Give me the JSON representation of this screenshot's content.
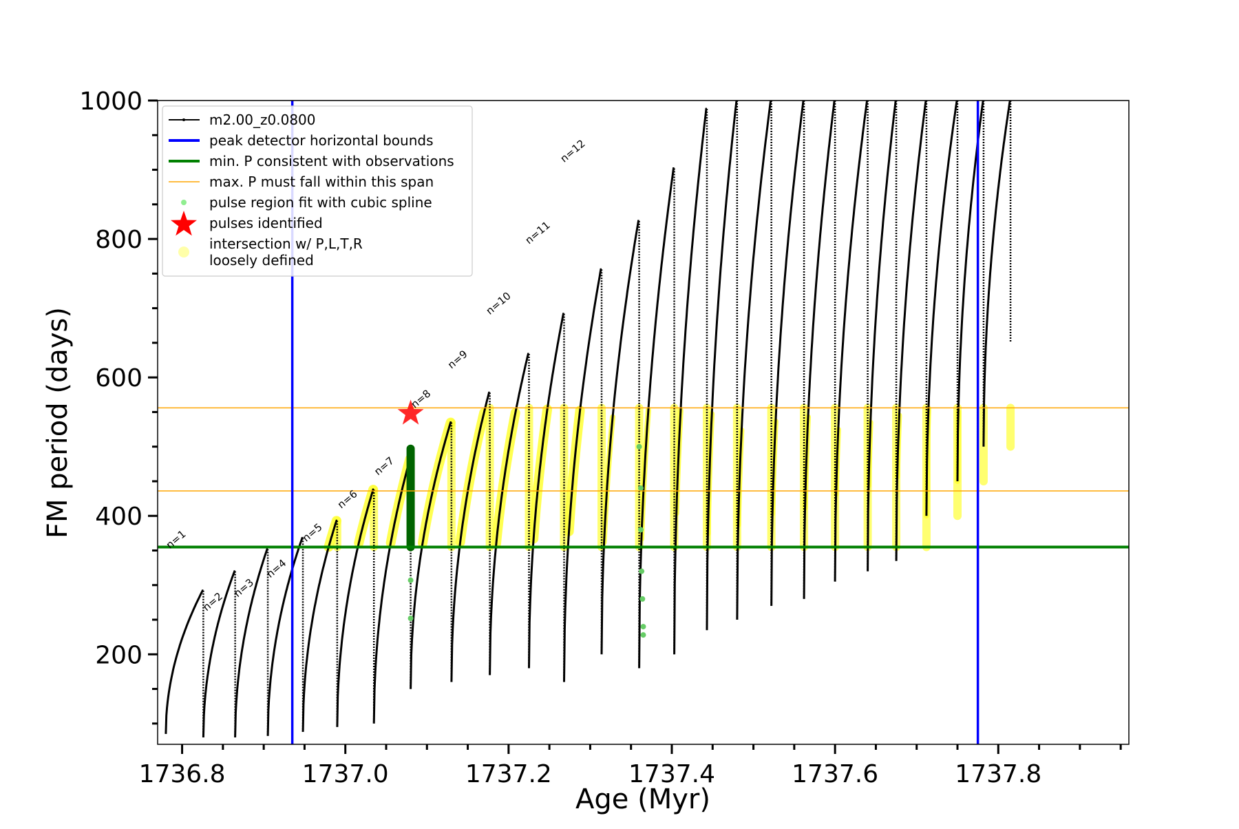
{
  "chart_data": {
    "type": "line",
    "xlabel": "Age (Myr)",
    "ylabel": "FM period (days)",
    "xlim": [
      1736.77,
      1737.96
    ],
    "ylim": [
      70,
      1000
    ],
    "x_ticks": [
      1736.8,
      1737.0,
      1737.2,
      1737.4,
      1737.6,
      1737.8
    ],
    "x_tick_labels": [
      "1736.8",
      "1737.0",
      "1737.2",
      "1737.4",
      "1737.6",
      "1737.8"
    ],
    "y_ticks": [
      200,
      400,
      600,
      800,
      1000
    ],
    "y_tick_labels": [
      "200",
      "400",
      "600",
      "800",
      "1000"
    ],
    "grid": false,
    "legend_position": "top-left",
    "legend": [
      {
        "label": "m2.00_z0.0800",
        "kind": "line-marker",
        "color": "#000000"
      },
      {
        "label": "peak detector horizontal bounds",
        "kind": "line",
        "color": "#0000ff"
      },
      {
        "label": "min. P consistent with observations",
        "kind": "line",
        "color": "#008000"
      },
      {
        "label": "max. P must fall within this span",
        "kind": "thin-line",
        "color": "#ffa500"
      },
      {
        "label": "pulse region fit with cubic spline",
        "kind": "dot",
        "color": "#90ee90"
      },
      {
        "label": "pulses identified",
        "kind": "star",
        "color": "#ff0000"
      },
      {
        "label": "intersection w/ P,L,T,R",
        "label2": "loosely defined",
        "kind": "big-dot",
        "color": "#ffffa0"
      }
    ],
    "vertical_lines": [
      {
        "x": 1736.935,
        "color": "#0000ff",
        "name": "peak detector horizontal bound (left)"
      },
      {
        "x": 1737.775,
        "color": "#0000ff",
        "name": "peak detector horizontal bound (right)"
      }
    ],
    "horizontal_lines": [
      {
        "y": 355,
        "color": "#008000",
        "name": "min. P consistent with observations"
      },
      {
        "y": 436,
        "color": "#ffa500",
        "name": "max. P span lower"
      },
      {
        "y": 556,
        "color": "#ffa500",
        "name": "max. P span upper"
      }
    ],
    "pulses": [
      {
        "start": 1736.78,
        "end": 1736.826,
        "min": 85,
        "peak": 292
      },
      {
        "start": 1736.826,
        "end": 1736.865,
        "min": 80,
        "peak": 320
      },
      {
        "start": 1736.865,
        "end": 1736.905,
        "min": 80,
        "peak": 352
      },
      {
        "start": 1736.905,
        "end": 1736.948,
        "min": 82,
        "peak": 368
      },
      {
        "start": 1736.948,
        "end": 1736.99,
        "min": 88,
        "peak": 393
      },
      {
        "start": 1736.99,
        "end": 1737.035,
        "min": 95,
        "peak": 438
      },
      {
        "start": 1737.035,
        "end": 1737.08,
        "min": 100,
        "peak": 482
      },
      {
        "start": 1737.08,
        "end": 1737.13,
        "min": 150,
        "peak": 535
      },
      {
        "start": 1737.13,
        "end": 1737.177,
        "min": 160,
        "peak": 578
      },
      {
        "start": 1737.177,
        "end": 1737.225,
        "min": 170,
        "peak": 634
      },
      {
        "start": 1737.225,
        "end": 1737.268,
        "min": 180,
        "peak": 692
      },
      {
        "start": 1737.268,
        "end": 1737.314,
        "min": 160,
        "peak": 756
      },
      {
        "start": 1737.314,
        "end": 1737.36,
        "min": 200,
        "peak": 826
      },
      {
        "start": 1737.36,
        "end": 1737.403,
        "min": 180,
        "peak": 902
      },
      {
        "start": 1737.403,
        "end": 1737.443,
        "min": 200,
        "peak": 988
      },
      {
        "start": 1737.443,
        "end": 1737.48,
        "min": 235,
        "peak": 1000
      },
      {
        "start": 1737.48,
        "end": 1737.522,
        "min": 250,
        "peak": 1000
      },
      {
        "start": 1737.522,
        "end": 1737.562,
        "min": 270,
        "peak": 1000
      },
      {
        "start": 1737.562,
        "end": 1737.6,
        "min": 280,
        "peak": 1000
      },
      {
        "start": 1737.6,
        "end": 1737.64,
        "min": 305,
        "peak": 1000
      },
      {
        "start": 1737.64,
        "end": 1737.675,
        "min": 320,
        "peak": 1000
      },
      {
        "start": 1737.675,
        "end": 1737.712,
        "min": 335,
        "peak": 1000
      },
      {
        "start": 1737.712,
        "end": 1737.75,
        "min": 400,
        "peak": 1000
      },
      {
        "start": 1737.75,
        "end": 1737.782,
        "min": 450,
        "peak": 1000
      },
      {
        "start": 1737.782,
        "end": 1737.815,
        "min": 500,
        "peak": 1000
      }
    ],
    "pulse_labels": [
      {
        "x": 1736.785,
        "y": 352,
        "text": "n=1"
      },
      {
        "x": 1736.83,
        "y": 262,
        "text": "n=2"
      },
      {
        "x": 1736.868,
        "y": 282,
        "text": "n=3"
      },
      {
        "x": 1736.908,
        "y": 310,
        "text": "n=4"
      },
      {
        "x": 1736.952,
        "y": 362,
        "text": "n=5"
      },
      {
        "x": 1736.995,
        "y": 410,
        "text": "n=6"
      },
      {
        "x": 1737.04,
        "y": 458,
        "text": "n=7"
      },
      {
        "x": 1737.085,
        "y": 555,
        "text": "n=8"
      },
      {
        "x": 1737.13,
        "y": 612,
        "text": "n=9"
      },
      {
        "x": 1737.177,
        "y": 690,
        "text": "n=10"
      },
      {
        "x": 1737.225,
        "y": 792,
        "text": "n=11"
      },
      {
        "x": 1737.268,
        "y": 910,
        "text": "n=12"
      }
    ],
    "pulses_identified": [
      {
        "x": 1737.08,
        "y": 548
      }
    ],
    "spline_fit_points": [
      {
        "x": 1737.08,
        "y": 307
      },
      {
        "x": 1737.08,
        "y": 252
      },
      {
        "x": 1737.36,
        "y": 500
      },
      {
        "x": 1737.362,
        "y": 440
      },
      {
        "x": 1737.362,
        "y": 380
      },
      {
        "x": 1737.363,
        "y": 320
      },
      {
        "x": 1737.364,
        "y": 280
      },
      {
        "x": 1737.365,
        "y": 240
      },
      {
        "x": 1737.365,
        "y": 228
      }
    ],
    "observation_consistent_segments": [
      {
        "x": 1737.08,
        "y_min": 355,
        "y_max": 497
      }
    ]
  }
}
